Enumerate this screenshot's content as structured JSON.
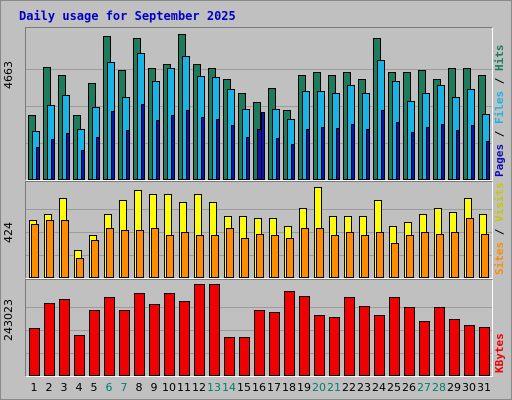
{
  "title": "Daily usage for September 2025",
  "chart_data": [
    {
      "type": "bar",
      "panel": "hits-files-pages",
      "ymax_label": "4663",
      "ylim": [
        0,
        4663
      ],
      "categories": [
        "1",
        "2",
        "3",
        "4",
        "5",
        "6",
        "7",
        "8",
        "9",
        "10",
        "11",
        "12",
        "13",
        "14",
        "15",
        "16",
        "17",
        "18",
        "19",
        "20",
        "21",
        "22",
        "23",
        "24",
        "25",
        "26",
        "27",
        "28",
        "29",
        "30",
        "31"
      ],
      "series": [
        {
          "name": "Hits",
          "color": "#1c7c5c",
          "values": [
            2048,
            3569,
            3293,
            2048,
            3043,
            4537,
            3476,
            4476,
            3541,
            3665,
            4599,
            3665,
            3541,
            3169,
            2732,
            2451,
            2913,
            2203,
            3293,
            3417,
            3293,
            3417,
            3169,
            4475,
            3417,
            3417,
            3476,
            3169,
            3541,
            3541,
            3293
          ]
        },
        {
          "name": "Files",
          "color": "#18b4e6",
          "values": [
            1546,
            2363,
            2669,
            1610,
            2300,
            3730,
            2600,
            4000,
            3107,
            3542,
            3900,
            3290,
            3230,
            2860,
            2232,
            1610,
            2232,
            1930,
            2790,
            2793,
            2736,
            2980,
            2730,
            3793,
            3106,
            2500,
            2736,
            2980,
            2600,
            2860,
            2076
          ]
        },
        {
          "name": "Pages",
          "color": "#1010b4",
          "values": [
            1046,
            1300,
            1480,
            960,
            1360,
            2180,
            1560,
            2400,
            1880,
            2040,
            2200,
            1980,
            1930,
            1740,
            1360,
            2140,
            1320,
            1140,
            1620,
            1680,
            1640,
            1760,
            1600,
            2200,
            1840,
            1500,
            1660,
            1780,
            1560,
            1720,
            1240
          ]
        }
      ]
    },
    {
      "type": "bar",
      "panel": "visits-sites",
      "ymax_label": "424",
      "ylim": [
        0,
        424
      ],
      "categories": [
        "1",
        "2",
        "3",
        "4",
        "5",
        "6",
        "7",
        "8",
        "9",
        "10",
        "11",
        "12",
        "13",
        "14",
        "15",
        "16",
        "17",
        "18",
        "19",
        "20",
        "21",
        "22",
        "23",
        "24",
        "25",
        "26",
        "27",
        "28",
        "29",
        "30",
        "31"
      ],
      "series": [
        {
          "name": "Visits",
          "color": "#ffff00",
          "values": [
            268,
            295,
            368,
            127,
            200,
            295,
            359,
            404,
            386,
            386,
            350,
            386,
            350,
            286,
            286,
            276,
            276,
            240,
            322,
            418,
            286,
            286,
            286,
            359,
            240,
            258,
            295,
            322,
            304,
            368,
            295
          ]
        },
        {
          "name": "Sites",
          "color": "#ff8c00",
          "values": [
            250,
            268,
            268,
            94,
            173,
            232,
            222,
            222,
            232,
            196,
            214,
            196,
            196,
            232,
            185,
            205,
            196,
            185,
            232,
            232,
            196,
            214,
            196,
            214,
            162,
            196,
            214,
            205,
            214,
            277,
            205
          ]
        }
      ]
    },
    {
      "type": "bar",
      "panel": "kbytes",
      "ymax_label": "243023",
      "ylim": [
        0,
        243023
      ],
      "categories": [
        "1",
        "2",
        "3",
        "4",
        "5",
        "6",
        "7",
        "8",
        "9",
        "10",
        "11",
        "12",
        "13",
        "14",
        "15",
        "16",
        "17",
        "18",
        "19",
        "20",
        "21",
        "22",
        "23",
        "24",
        "25",
        "26",
        "27",
        "28",
        "29",
        "30",
        "31"
      ],
      "series": [
        {
          "name": "KBytes",
          "color": "#f00000",
          "values": [
            127000,
            193000,
            204000,
            107000,
            175000,
            209000,
            175000,
            219000,
            190000,
            219000,
            199000,
            243023,
            242000,
            104000,
            104000,
            175000,
            170000,
            225000,
            212000,
            160000,
            155000,
            210000,
            185000,
            160000,
            210000,
            182000,
            145000,
            182000,
            150000,
            134000,
            130000
          ]
        }
      ]
    }
  ],
  "right_labels": {
    "hits": {
      "pages": "Pages",
      "files": "Files",
      "hits": "Hits",
      "sep": " / "
    },
    "sites": {
      "sites": "Sites",
      "visits": "Visits",
      "sep": " / "
    },
    "kbytes": {
      "kbytes": "KBytes"
    }
  },
  "colors": {
    "hits": "#1c7c5c",
    "files": "#18b4e6",
    "pages": "#1010b4",
    "visits": "#ffff00",
    "sites": "#ff8c00",
    "kbytes": "#f00000",
    "weekday_tick": "#000000",
    "weekend_tick": "#00806e",
    "title": "#0000c8",
    "background": "#c0c0c0"
  },
  "weekend_days": [
    "6",
    "7",
    "13",
    "14",
    "20",
    "21",
    "27",
    "28"
  ],
  "highlight_day": "16"
}
